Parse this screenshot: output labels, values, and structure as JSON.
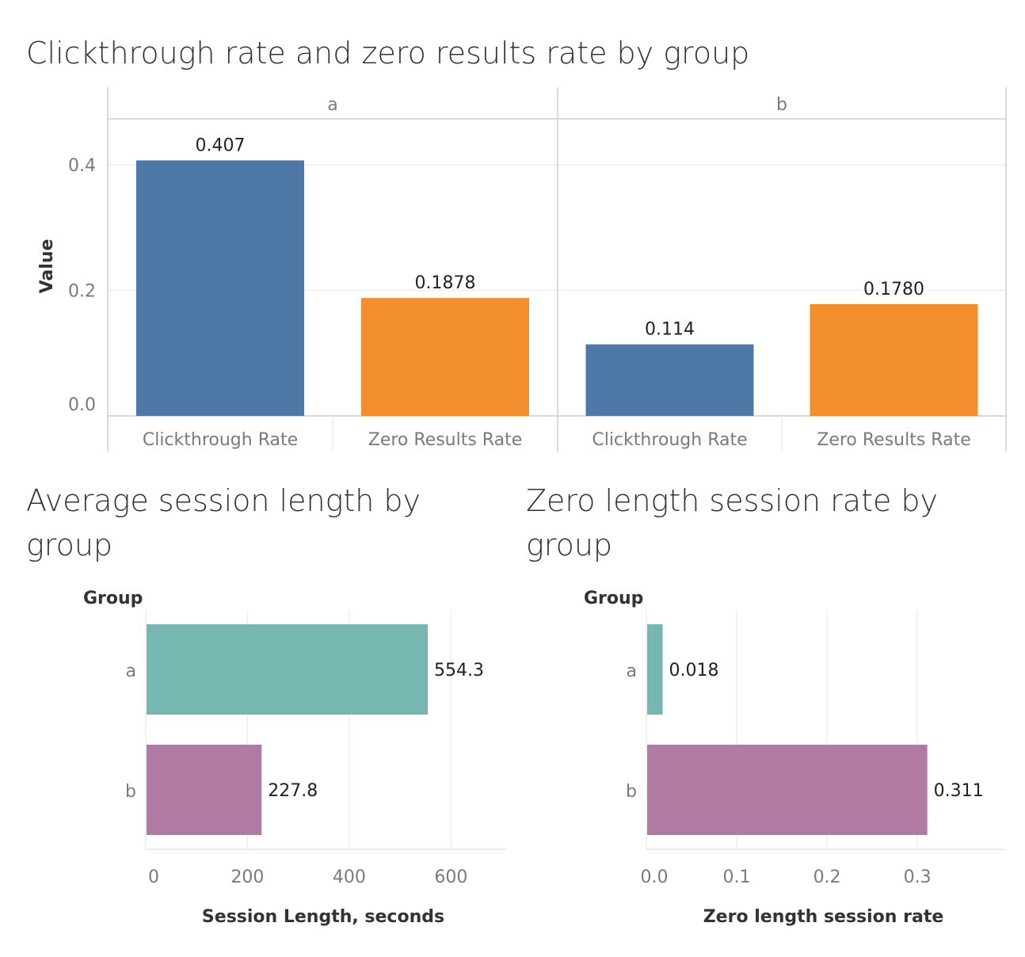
{
  "chart_data": [
    {
      "type": "bar",
      "title": "Clickthrough rate and zero results rate by group",
      "facets": [
        "a",
        "b"
      ],
      "categories": [
        "Clickthrough Rate",
        "Zero Results Rate"
      ],
      "values": {
        "a": [
          0.407,
          0.1878
        ],
        "b": [
          0.114,
          0.178
        ]
      },
      "value_labels": {
        "a": [
          "0.407",
          "0.1878"
        ],
        "b": [
          "0.114",
          "0.1780"
        ]
      },
      "colors": [
        "#4e79a7",
        "#f28e2b"
      ],
      "ylabel": "Value",
      "ylim": [
        0,
        0.48
      ],
      "yticks": [
        0.0,
        0.2,
        0.4
      ],
      "ytick_labels": [
        "0.0",
        "0.2",
        "0.4"
      ],
      "grid": true
    },
    {
      "type": "bar",
      "orientation": "horizontal",
      "title": "Average session length by group",
      "title_lines": [
        "Average session length by",
        "group"
      ],
      "group_header": "Group",
      "categories": [
        "a",
        "b"
      ],
      "values": [
        554.3,
        227.8
      ],
      "value_labels": [
        "554.3",
        "227.8"
      ],
      "colors": [
        "#76b7b2",
        "#b07aa1"
      ],
      "xlabel": "Session Length, seconds",
      "xlim": [
        0,
        710
      ],
      "xticks": [
        0,
        200,
        400,
        600
      ],
      "xtick_labels": [
        "0",
        "200",
        "400",
        "600"
      ],
      "grid": true
    },
    {
      "type": "bar",
      "orientation": "horizontal",
      "title": "Zero length session rate by group",
      "title_lines": [
        "Zero length session rate by",
        "group"
      ],
      "group_header": "Group",
      "categories": [
        "a",
        "b"
      ],
      "values": [
        0.018,
        0.311
      ],
      "value_labels": [
        "0.018",
        "0.311"
      ],
      "colors": [
        "#76b7b2",
        "#b07aa1"
      ],
      "xlabel": "Zero length session rate",
      "xlim": [
        0,
        0.399
      ],
      "xticks": [
        0.0,
        0.1,
        0.2,
        0.3
      ],
      "xtick_labels": [
        "0.0",
        "0.1",
        "0.2",
        "0.3"
      ],
      "grid": true
    }
  ]
}
